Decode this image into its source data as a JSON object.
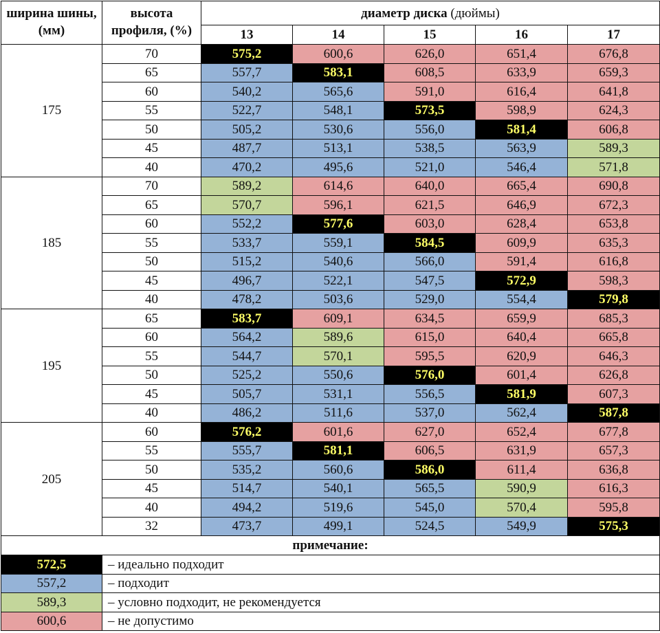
{
  "header": {
    "width_label": "ширина шины, (мм)",
    "profile_label": "высота профиля, (%)",
    "diameter_label": "диаметр диска",
    "diameter_unit": "(дюймы)",
    "diameters": [
      "13",
      "14",
      "15",
      "16",
      "17"
    ]
  },
  "groups": [
    {
      "width": "175",
      "rows": [
        {
          "profile": "70",
          "cells": [
            "575,2",
            "600,6",
            "626,0",
            "651,4",
            "676,8"
          ],
          "colors": [
            "#000000",
            "#e6a1a1",
            "#e6a1a1",
            "#e6a1a1",
            "#e6a1a1"
          ]
        },
        {
          "profile": "65",
          "cells": [
            "557,7",
            "583,1",
            "608,5",
            "633,9",
            "659,3"
          ],
          "colors": [
            "#95b3d7",
            "#000000",
            "#e6a1a1",
            "#e6a1a1",
            "#e6a1a1"
          ]
        },
        {
          "profile": "60",
          "cells": [
            "540,2",
            "565,6",
            "591,0",
            "616,4",
            "641,8"
          ],
          "colors": [
            "#95b3d7",
            "#95b3d7",
            "#e6a1a1",
            "#e6a1a1",
            "#e6a1a1"
          ]
        },
        {
          "profile": "55",
          "cells": [
            "522,7",
            "548,1",
            "573,5",
            "598,9",
            "624,3"
          ],
          "colors": [
            "#95b3d7",
            "#95b3d7",
            "#000000",
            "#e6a1a1",
            "#e6a1a1"
          ]
        },
        {
          "profile": "50",
          "cells": [
            "505,2",
            "530,6",
            "556,0",
            "581,4",
            "606,8"
          ],
          "colors": [
            "#95b3d7",
            "#95b3d7",
            "#95b3d7",
            "#000000",
            "#e6a1a1"
          ]
        },
        {
          "profile": "45",
          "cells": [
            "487,7",
            "513,1",
            "538,5",
            "563,9",
            "589,3"
          ],
          "colors": [
            "#95b3d7",
            "#95b3d7",
            "#95b3d7",
            "#95b3d7",
            "#c3d69b"
          ]
        },
        {
          "profile": "40",
          "cells": [
            "470,2",
            "495,6",
            "521,0",
            "546,4",
            "571,8"
          ],
          "colors": [
            "#95b3d7",
            "#95b3d7",
            "#95b3d7",
            "#95b3d7",
            "#c3d69b"
          ]
        }
      ]
    },
    {
      "width": "185",
      "rows": [
        {
          "profile": "70",
          "cells": [
            "589,2",
            "614,6",
            "640,0",
            "665,4",
            "690,8"
          ],
          "colors": [
            "#c3d69b",
            "#e6a1a1",
            "#e6a1a1",
            "#e6a1a1",
            "#e6a1a1"
          ]
        },
        {
          "profile": "65",
          "cells": [
            "570,7",
            "596,1",
            "621,5",
            "646,9",
            "672,3"
          ],
          "colors": [
            "#c3d69b",
            "#e6a1a1",
            "#e6a1a1",
            "#e6a1a1",
            "#e6a1a1"
          ]
        },
        {
          "profile": "60",
          "cells": [
            "552,2",
            "577,6",
            "603,0",
            "628,4",
            "653,8"
          ],
          "colors": [
            "#95b3d7",
            "#000000",
            "#e6a1a1",
            "#e6a1a1",
            "#e6a1a1"
          ]
        },
        {
          "profile": "55",
          "cells": [
            "533,7",
            "559,1",
            "584,5",
            "609,9",
            "635,3"
          ],
          "colors": [
            "#95b3d7",
            "#95b3d7",
            "#000000",
            "#e6a1a1",
            "#e6a1a1"
          ]
        },
        {
          "profile": "50",
          "cells": [
            "515,2",
            "540,6",
            "566,0",
            "591,4",
            "616,8"
          ],
          "colors": [
            "#95b3d7",
            "#95b3d7",
            "#95b3d7",
            "#e6a1a1",
            "#e6a1a1"
          ]
        },
        {
          "profile": "45",
          "cells": [
            "496,7",
            "522,1",
            "547,5",
            "572,9",
            "598,3"
          ],
          "colors": [
            "#95b3d7",
            "#95b3d7",
            "#95b3d7",
            "#000000",
            "#e6a1a1"
          ]
        },
        {
          "profile": "40",
          "cells": [
            "478,2",
            "503,6",
            "529,0",
            "554,4",
            "579,8"
          ],
          "colors": [
            "#95b3d7",
            "#95b3d7",
            "#95b3d7",
            "#95b3d7",
            "#000000"
          ]
        }
      ]
    },
    {
      "width": "195",
      "rows": [
        {
          "profile": "65",
          "cells": [
            "583,7",
            "609,1",
            "634,5",
            "659,9",
            "685,3"
          ],
          "colors": [
            "#000000",
            "#e6a1a1",
            "#e6a1a1",
            "#e6a1a1",
            "#e6a1a1"
          ]
        },
        {
          "profile": "60",
          "cells": [
            "564,2",
            "589,6",
            "615,0",
            "640,4",
            "665,8"
          ],
          "colors": [
            "#95b3d7",
            "#c3d69b",
            "#e6a1a1",
            "#e6a1a1",
            "#e6a1a1"
          ]
        },
        {
          "profile": "55",
          "cells": [
            "544,7",
            "570,1",
            "595,5",
            "620,9",
            "646,3"
          ],
          "colors": [
            "#95b3d7",
            "#c3d69b",
            "#e6a1a1",
            "#e6a1a1",
            "#e6a1a1"
          ]
        },
        {
          "profile": "50",
          "cells": [
            "525,2",
            "550,6",
            "576,0",
            "601,4",
            "626,8"
          ],
          "colors": [
            "#95b3d7",
            "#95b3d7",
            "#000000",
            "#e6a1a1",
            "#e6a1a1"
          ]
        },
        {
          "profile": "45",
          "cells": [
            "505,7",
            "531,1",
            "556,5",
            "581,9",
            "607,3"
          ],
          "colors": [
            "#95b3d7",
            "#95b3d7",
            "#95b3d7",
            "#000000",
            "#e6a1a1"
          ]
        },
        {
          "profile": "40",
          "cells": [
            "486,2",
            "511,6",
            "537,0",
            "562,4",
            "587,8"
          ],
          "colors": [
            "#95b3d7",
            "#95b3d7",
            "#95b3d7",
            "#95b3d7",
            "#000000"
          ]
        }
      ]
    },
    {
      "width": "205",
      "rows": [
        {
          "profile": "60",
          "cells": [
            "576,2",
            "601,6",
            "627,0",
            "652,4",
            "677,8"
          ],
          "colors": [
            "#000000",
            "#e6a1a1",
            "#e6a1a1",
            "#e6a1a1",
            "#e6a1a1"
          ]
        },
        {
          "profile": "55",
          "cells": [
            "555,7",
            "581,1",
            "606,5",
            "631,9",
            "657,3"
          ],
          "colors": [
            "#95b3d7",
            "#000000",
            "#e6a1a1",
            "#e6a1a1",
            "#e6a1a1"
          ]
        },
        {
          "profile": "50",
          "cells": [
            "535,2",
            "560,6",
            "586,0",
            "611,4",
            "636,8"
          ],
          "colors": [
            "#95b3d7",
            "#95b3d7",
            "#000000",
            "#e6a1a1",
            "#e6a1a1"
          ]
        },
        {
          "profile": "45",
          "cells": [
            "514,7",
            "540,1",
            "565,5",
            "590,9",
            "616,3"
          ],
          "colors": [
            "#95b3d7",
            "#95b3d7",
            "#95b3d7",
            "#c3d69b",
            "#e6a1a1"
          ]
        },
        {
          "profile": "40",
          "cells": [
            "494,2",
            "519,6",
            "545,0",
            "570,4",
            "595,8"
          ],
          "colors": [
            "#95b3d7",
            "#95b3d7",
            "#95b3d7",
            "#c3d69b",
            "#e6a1a1"
          ]
        },
        {
          "profile": "32",
          "cells": [
            "473,7",
            "499,1",
            "524,5",
            "549,9",
            "575,3"
          ],
          "colors": [
            "#95b3d7",
            "#95b3d7",
            "#95b3d7",
            "#95b3d7",
            "#000000"
          ]
        }
      ]
    }
  ],
  "note": {
    "title": "примечание:",
    "items": [
      {
        "sample": "572,5",
        "text": "– идеально подходит",
        "color": "#000000"
      },
      {
        "sample": "557,2",
        "text": "– подходит",
        "color": "#95b3d7"
      },
      {
        "sample": "589,3",
        "text": "– условно подходит, не рекомендуется",
        "color": "#c3d69b"
      },
      {
        "sample": "600,6",
        "text": "– не допустимо",
        "color": "#e6a1a1"
      }
    ]
  }
}
